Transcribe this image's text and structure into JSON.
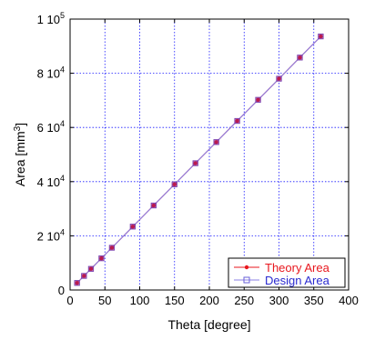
{
  "chart_data": {
    "type": "line",
    "xlabel": "Theta [degree]",
    "ylabel": {
      "text": "Area [mm",
      "sup": "3",
      "close": "]"
    },
    "xlim": [
      0,
      400
    ],
    "ylim": [
      0,
      100000
    ],
    "grid": true,
    "legend_position": "bottom-right",
    "x_ticks": [
      {
        "value": 0,
        "label": "0"
      },
      {
        "value": 50,
        "label": "50"
      },
      {
        "value": 100,
        "label": "100"
      },
      {
        "value": 150,
        "label": "150"
      },
      {
        "value": 200,
        "label": "200"
      },
      {
        "value": 250,
        "label": "250"
      },
      {
        "value": 300,
        "label": "300"
      },
      {
        "value": 350,
        "label": "350"
      },
      {
        "value": 400,
        "label": "400"
      }
    ],
    "y_ticks": [
      {
        "value": 0,
        "mant": "0",
        "exp": ""
      },
      {
        "value": 20000,
        "mant": "2 10",
        "exp": "4"
      },
      {
        "value": 40000,
        "mant": "4 10",
        "exp": "4"
      },
      {
        "value": 60000,
        "mant": "6 10",
        "exp": "4"
      },
      {
        "value": 80000,
        "mant": "8 10",
        "exp": "4"
      },
      {
        "value": 100000,
        "mant": "1 10",
        "exp": "5"
      }
    ],
    "series": [
      {
        "name": "Theory Area",
        "color": "#e8171e",
        "marker": "circle",
        "x": [
          10,
          20,
          30,
          45,
          60,
          90,
          120,
          150,
          180,
          210,
          240,
          270,
          300,
          330,
          360
        ],
        "y": [
          2600,
          5200,
          7800,
          11700,
          15600,
          23400,
          31200,
          39000,
          46800,
          54600,
          62400,
          70200,
          78000,
          85800,
          93600
        ]
      },
      {
        "name": "Design Area",
        "color": "#8b82e6",
        "marker": "square",
        "x": [
          10,
          20,
          30,
          45,
          60,
          90,
          120,
          150,
          180,
          210,
          240,
          270,
          300,
          330,
          360
        ],
        "y": [
          2600,
          5200,
          7800,
          11700,
          15600,
          23400,
          31200,
          39000,
          46800,
          54600,
          62400,
          70200,
          78000,
          85800,
          93600
        ]
      }
    ]
  }
}
